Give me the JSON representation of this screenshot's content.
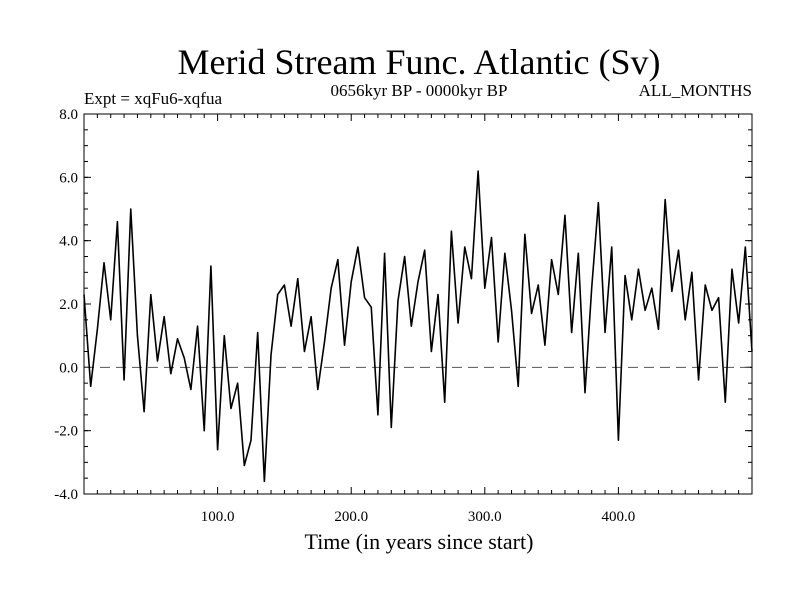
{
  "chart_data": {
    "type": "line",
    "title": "Merid Stream Func. Atlantic (Sv)",
    "subtitle_left": "Expt = xqFu6-xqfua",
    "subtitle_center": "0656kyr BP - 0000kyr BP",
    "subtitle_right": "ALL_MONTHS",
    "xlabel": "Time (in years since start)",
    "ylabel": "",
    "xlim": [
      0,
      500
    ],
    "ylim": [
      -4.0,
      8.0
    ],
    "xticks": [
      100,
      200,
      300,
      400
    ],
    "xtick_labels": [
      "100.0",
      "200.0",
      "300.0",
      "400.0"
    ],
    "yticks": [
      -4,
      -2,
      0,
      2,
      4,
      6,
      8
    ],
    "ytick_labels": [
      "-4.0",
      "-2.0",
      "0.0",
      "2.0",
      "4.0",
      "6.0",
      "8.0"
    ],
    "reference_line": 0,
    "series": [
      {
        "name": "Merid Stream Func. Atlantic",
        "x": [
          0,
          5,
          10,
          15,
          20,
          25,
          30,
          35,
          40,
          45,
          50,
          55,
          60,
          65,
          70,
          75,
          80,
          85,
          90,
          95,
          100,
          105,
          110,
          115,
          120,
          125,
          130,
          135,
          140,
          145,
          150,
          155,
          160,
          165,
          170,
          175,
          180,
          185,
          190,
          195,
          200,
          205,
          210,
          215,
          220,
          225,
          230,
          235,
          240,
          245,
          250,
          255,
          260,
          265,
          270,
          275,
          280,
          285,
          290,
          295,
          300,
          305,
          310,
          315,
          320,
          325,
          330,
          335,
          340,
          345,
          350,
          355,
          360,
          365,
          370,
          375,
          380,
          385,
          390,
          395,
          400,
          405,
          410,
          415,
          420,
          425,
          430,
          435,
          440,
          445,
          450,
          455,
          460,
          465,
          470,
          475,
          480,
          485,
          490,
          495,
          500
        ],
        "values": [
          2.3,
          -0.6,
          1.2,
          3.3,
          1.5,
          4.6,
          -0.4,
          5.0,
          1.0,
          -1.4,
          2.3,
          0.2,
          1.6,
          -0.2,
          0.9,
          0.3,
          -0.7,
          1.3,
          -2.0,
          3.2,
          -2.6,
          1.0,
          -1.3,
          -0.5,
          -3.1,
          -2.3,
          1.1,
          -3.6,
          0.4,
          2.3,
          2.6,
          1.3,
          2.8,
          0.5,
          1.6,
          -0.7,
          0.8,
          2.5,
          3.4,
          0.7,
          2.7,
          3.8,
          2.2,
          1.9,
          -1.5,
          3.6,
          -1.9,
          2.1,
          3.5,
          1.3,
          2.7,
          3.7,
          0.5,
          2.3,
          -1.1,
          4.3,
          1.4,
          3.8,
          2.8,
          6.2,
          2.5,
          4.1,
          0.8,
          3.6,
          1.8,
          -0.6,
          4.2,
          1.7,
          2.6,
          0.7,
          3.4,
          2.3,
          4.8,
          1.1,
          3.6,
          -0.8,
          2.5,
          5.2,
          1.1,
          3.8,
          -2.3,
          2.9,
          1.5,
          3.1,
          1.8,
          2.5,
          1.2,
          5.3,
          2.4,
          3.7,
          1.5,
          3.0,
          -0.4,
          2.6,
          1.8,
          2.2,
          -1.1,
          3.1,
          1.4,
          3.8,
          0.5
        ]
      }
    ]
  }
}
